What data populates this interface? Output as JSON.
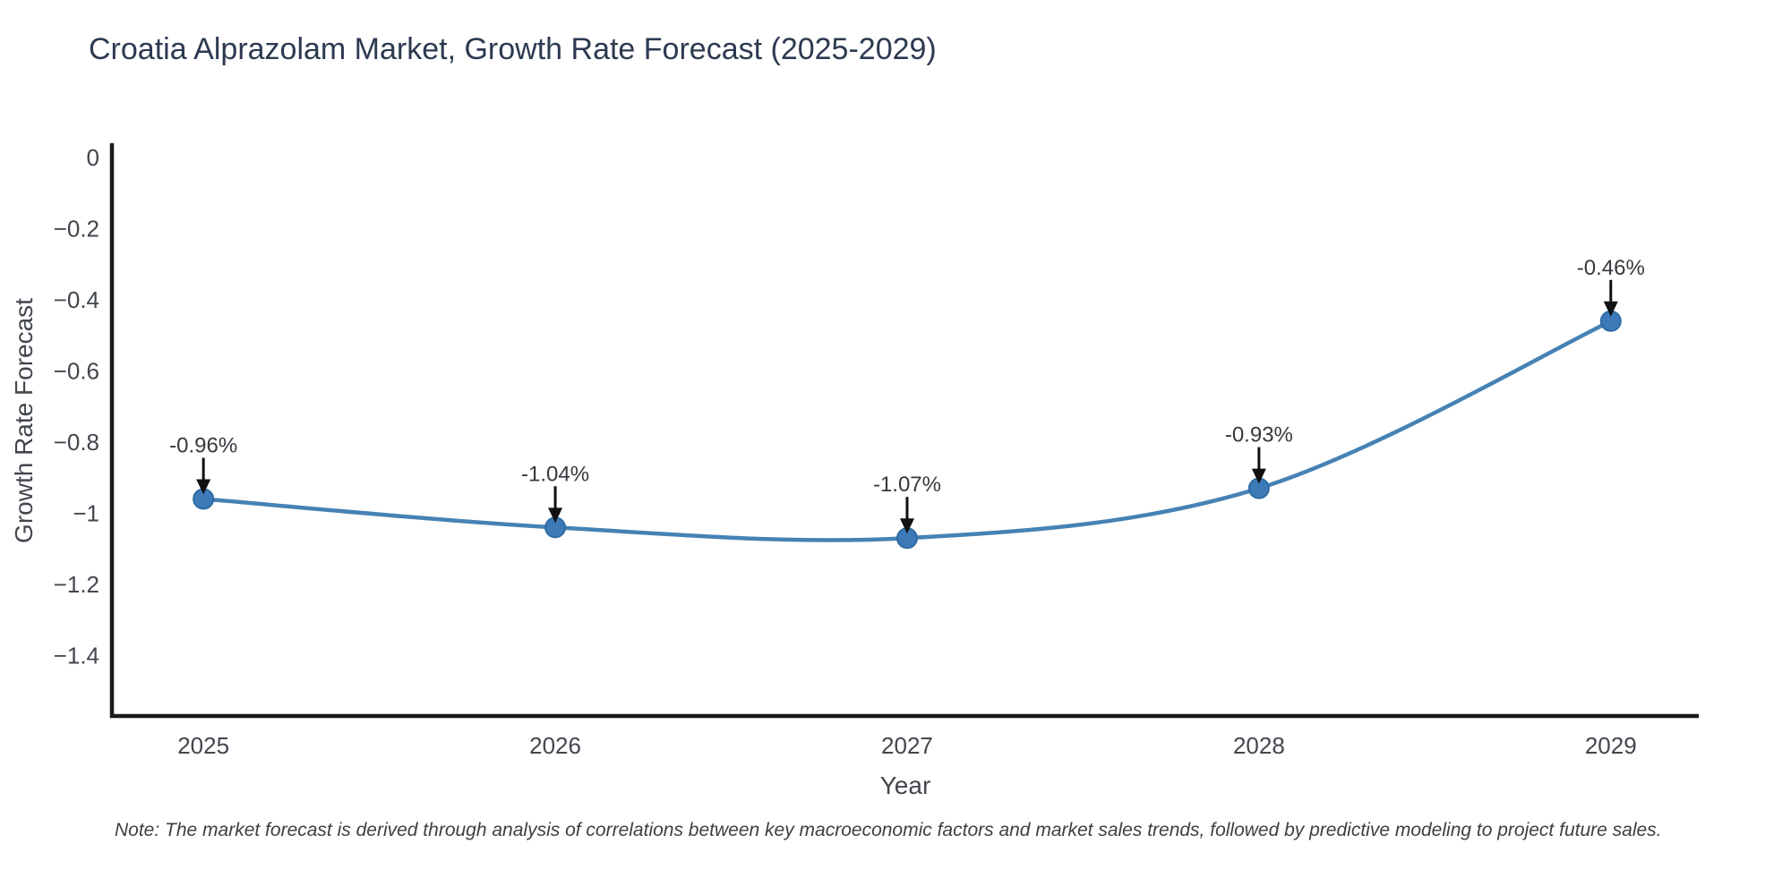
{
  "header": {
    "title": "Croatia Alprazolam Market, Growth Rate Forecast (2025-2029)"
  },
  "footer": {
    "note": "Note: The market forecast is derived through analysis of correlations between key macroeconomic factors and market sales trends, followed by predictive modeling to project future sales."
  },
  "chart_data": {
    "type": "line",
    "title": "Croatia Alprazolam Market, Growth Rate Forecast (2025-2029)",
    "xlabel": "Year",
    "ylabel": "Growth Rate Forecast",
    "x": [
      2025,
      2026,
      2027,
      2028,
      2029
    ],
    "values": [
      -0.96,
      -1.04,
      -1.07,
      -0.93,
      -0.46
    ],
    "point_labels": [
      "-0.96%",
      "-1.04%",
      "-1.07%",
      "-0.93%",
      "-0.46%"
    ],
    "xtick_labels": [
      "2025",
      "2026",
      "2027",
      "2028",
      "2029"
    ],
    "yticks": [
      0,
      -0.2,
      -0.4,
      -0.6,
      -0.8,
      -1,
      -1.2,
      -1.4
    ],
    "ytick_labels": [
      "0",
      "−0.2",
      "−0.4",
      "−0.6",
      "−0.8",
      "−1",
      "−1.2",
      "−1.4"
    ],
    "xlim": [
      2024.74,
      2029.25
    ],
    "ylim": [
      -1.57,
      0.04
    ],
    "grid": false,
    "legend": "none",
    "colors": {
      "line": "#4682b4",
      "marker_fill": "#3d7ab8",
      "marker_edge": "#2f6ba3",
      "axis": "#1a1a1a",
      "arrow": "#111111"
    }
  }
}
